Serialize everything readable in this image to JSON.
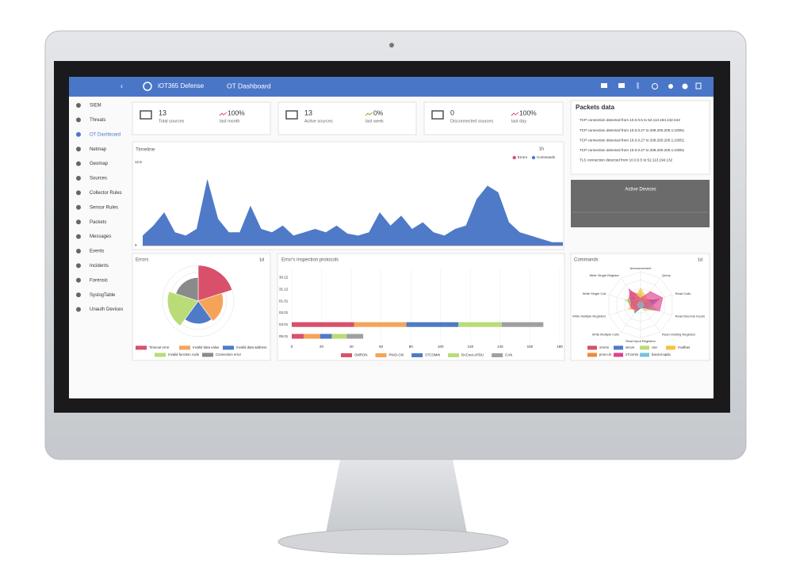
{
  "header": {
    "brand": "iOT365 Defense",
    "title": "OT Dashboard"
  },
  "sidebar": {
    "items": [
      "SIEM",
      "Threats",
      "OT Dashboard",
      "Netmap",
      "Geomap",
      "Sources",
      "Collector Rules",
      "Sensor Rules",
      "Packets",
      "Messages",
      "Events",
      "Incidents",
      "Forensic",
      "SyslogTable",
      "Unauth Devices"
    ]
  },
  "stats": [
    {
      "value": "13",
      "label": "Total sources",
      "change": "100%",
      "period": "last month"
    },
    {
      "value": "13",
      "label": "Active sources",
      "change": "0%",
      "period": "last week"
    },
    {
      "value": "0",
      "label": "Disconnected sources",
      "change": "100%",
      "period": "last day"
    }
  ],
  "packets": {
    "title": "Packets data",
    "rows": [
      "TCP connection detected from 10.0.0.5 to 52.113.194.132:443",
      "TCP connection detected from 10.0.0.27 to 208.200.200.1:10051",
      "TCP connection detected from 10.0.0.27 to 208.200.200.1:10051",
      "TCP connection detected from 10.0.0.27 to 208.200.200.1:10051",
      "TLS connection detected from 10.0.0.5 to 52.113.194.132"
    ]
  },
  "active_devices": {
    "title": "Active Devices"
  },
  "timeline": {
    "type": "area",
    "title": "Timeline",
    "period": "1h",
    "ylim": [
      0,
      12.5
    ],
    "yticks": [
      0,
      12.5
    ],
    "series": [
      {
        "name": "Errors",
        "color": "#d9506b",
        "values": [
          0,
          0,
          0,
          0,
          0,
          0,
          0,
          0,
          0,
          0,
          0,
          0,
          0,
          0,
          0,
          0,
          0,
          0,
          0,
          0,
          0,
          0,
          0,
          0,
          0,
          0,
          0,
          0,
          0,
          0,
          0,
          0,
          0,
          0,
          0,
          0,
          0,
          0,
          0,
          0
        ]
      },
      {
        "name": "Commands",
        "color": "#4f7ac7",
        "values": [
          1.5,
          3,
          5,
          2,
          1.5,
          2.5,
          10,
          4,
          2,
          2,
          6,
          2.5,
          2,
          3,
          1.5,
          2,
          2.5,
          2,
          3,
          1.8,
          1.5,
          2,
          5,
          3,
          4.5,
          2.5,
          3.5,
          2,
          1.5,
          2.5,
          3,
          7,
          9,
          8,
          3.5,
          2,
          1.5,
          1,
          0.5,
          0.5
        ]
      }
    ]
  },
  "errors": {
    "type": "polar",
    "title": "Errors",
    "period": "1d",
    "rlim": [
      0,
      5
    ],
    "categories": [
      "Timeout error",
      "Invalid data value",
      "Invalid data address",
      "Invalid function code",
      "Connection error"
    ],
    "colors": [
      "#d9506b",
      "#f6a35a",
      "#4f7ac7",
      "#b9dc78",
      "#8a8a8a"
    ],
    "values": [
      5,
      3.5,
      3.2,
      4.3,
      3.3
    ]
  },
  "protocols": {
    "type": "hbar",
    "title": "Error's inspection protocols",
    "categories": [
      "30.12",
      "31.12",
      "01.01",
      "03.01",
      "04.01",
      "05.01"
    ],
    "xlim": [
      0,
      180
    ],
    "xticks": [
      0,
      20,
      40,
      60,
      80,
      100,
      120,
      140,
      160,
      180
    ],
    "series": [
      {
        "name": "OMRON",
        "color": "#d9506b",
        "values": [
          0,
          0,
          0,
          0,
          42,
          8
        ]
      },
      {
        "name": "PNIO-CM",
        "color": "#f6a35a",
        "values": [
          0,
          0,
          0,
          0,
          35,
          11
        ]
      },
      {
        "name": "S7COMM",
        "color": "#4f7ac7",
        "values": [
          0,
          0,
          0,
          0,
          35,
          8
        ]
      },
      {
        "name": "BACnet-APDU",
        "color": "#b9dc78",
        "values": [
          0,
          0,
          0,
          0,
          29,
          10
        ]
      },
      {
        "name": "CAN",
        "color": "#a0a0a0",
        "values": [
          0,
          0,
          0,
          0,
          28,
          11
        ]
      }
    ]
  },
  "commands": {
    "type": "radar",
    "title": "Commands",
    "period": "1d",
    "rlim": [
      0,
      10
    ],
    "categories": [
      "Announcement",
      "Query",
      "Read Coils",
      "Read Discrete Inputs",
      "Read Holding Registers",
      "Read Input Registers",
      "Write Multiple Coils",
      "Write Multiple Registers",
      "Write Single Coil",
      "Write Single Register"
    ],
    "series": [
      {
        "name": "omron",
        "color": "#d9506b",
        "values": [
          3,
          2,
          5,
          2,
          1,
          1,
          2,
          3,
          4,
          5
        ]
      },
      {
        "name": "secve",
        "color": "#4f7ac7",
        "values": [
          2,
          1,
          6,
          3,
          1,
          1,
          3,
          2,
          4,
          3
        ]
      },
      {
        "name": "can",
        "color": "#b9dc78",
        "values": [
          4,
          2,
          3,
          5,
          2,
          1,
          1,
          2,
          5,
          2
        ]
      },
      {
        "name": "modbus",
        "color": "#f6c342",
        "values": [
          5,
          3,
          2,
          1,
          1,
          1,
          2,
          4,
          2,
          3
        ]
      },
      {
        "name": "pnio-cm",
        "color": "#f08a3c",
        "values": [
          1,
          1,
          2,
          1,
          1,
          1,
          1,
          2,
          3,
          2
        ]
      },
      {
        "name": "s7comm",
        "color": "#e0418a",
        "values": [
          2,
          5,
          7,
          6,
          1,
          1,
          2,
          3,
          3,
          6
        ]
      },
      {
        "name": "bacnet-apdu",
        "color": "#74c3e0",
        "values": [
          1,
          1,
          1,
          1,
          1,
          1,
          1,
          1,
          1,
          1
        ]
      }
    ]
  }
}
